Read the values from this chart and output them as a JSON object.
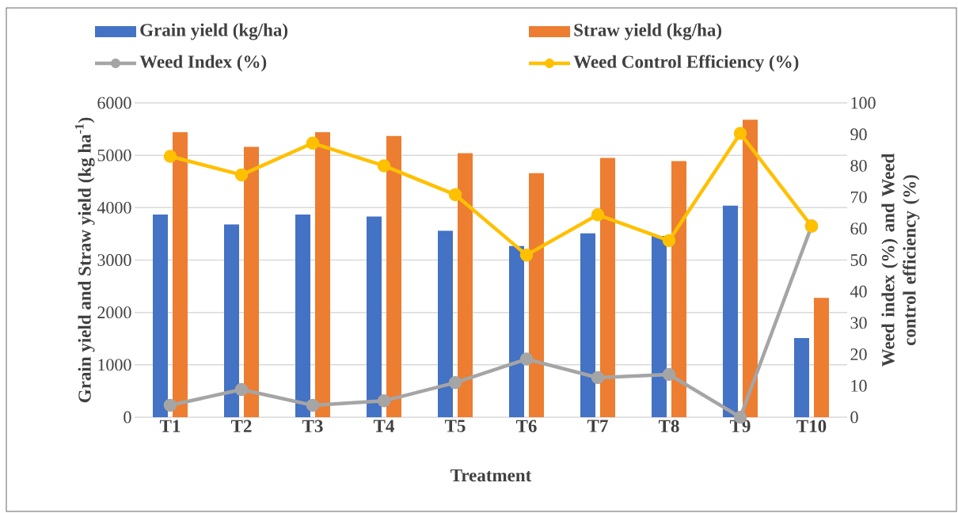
{
  "chart_data": {
    "type": "bar",
    "categories": [
      "T1",
      "T2",
      "T3",
      "T4",
      "T5",
      "T6",
      "T7",
      "T8",
      "T9",
      "T10"
    ],
    "xlabel": "Treatment",
    "ylabel": "Grain yield  and Straw yield  (kg ha$^{-1}$)",
    "y2label": "Weed index (%) and Weed control efficiency (%)",
    "ylim": [
      0,
      6000
    ],
    "yticks": [
      0,
      1000,
      2000,
      3000,
      4000,
      5000,
      6000
    ],
    "y2lim": [
      0,
      100
    ],
    "y2ticks": [
      0,
      10,
      20,
      30,
      40,
      50,
      60,
      70,
      80,
      90,
      100
    ],
    "grid": "y",
    "legend": "top",
    "series": [
      {
        "name": "Grain yield (kg/ha)",
        "color": "#4472c4",
        "values": [
          3870,
          3680,
          3870,
          3830,
          3560,
          3270,
          3510,
          3460,
          4040,
          1510
        ]
      },
      {
        "name": "Straw yield (kg/ha)",
        "color": "#ed7d31",
        "values": [
          5440,
          5160,
          5440,
          5370,
          5040,
          4660,
          4950,
          4890,
          5680,
          2280
        ]
      },
      {
        "name": "Weed Index (%)",
        "type": "line",
        "axis": "y2",
        "marker": "circle",
        "color": "#a5a5a5",
        "values": [
          3.8,
          8.8,
          3.8,
          5.2,
          11.0,
          18.5,
          12.6,
          13.6,
          0,
          60.8
        ]
      },
      {
        "name": "Weed Control Efficiency (%)",
        "type": "line",
        "axis": "y2",
        "marker": "circle",
        "color": "#ffc000",
        "values": [
          83.0,
          77.1,
          87.2,
          80.0,
          70.8,
          51.6,
          64.4,
          56.2,
          90.3,
          60.8
        ]
      }
    ]
  }
}
